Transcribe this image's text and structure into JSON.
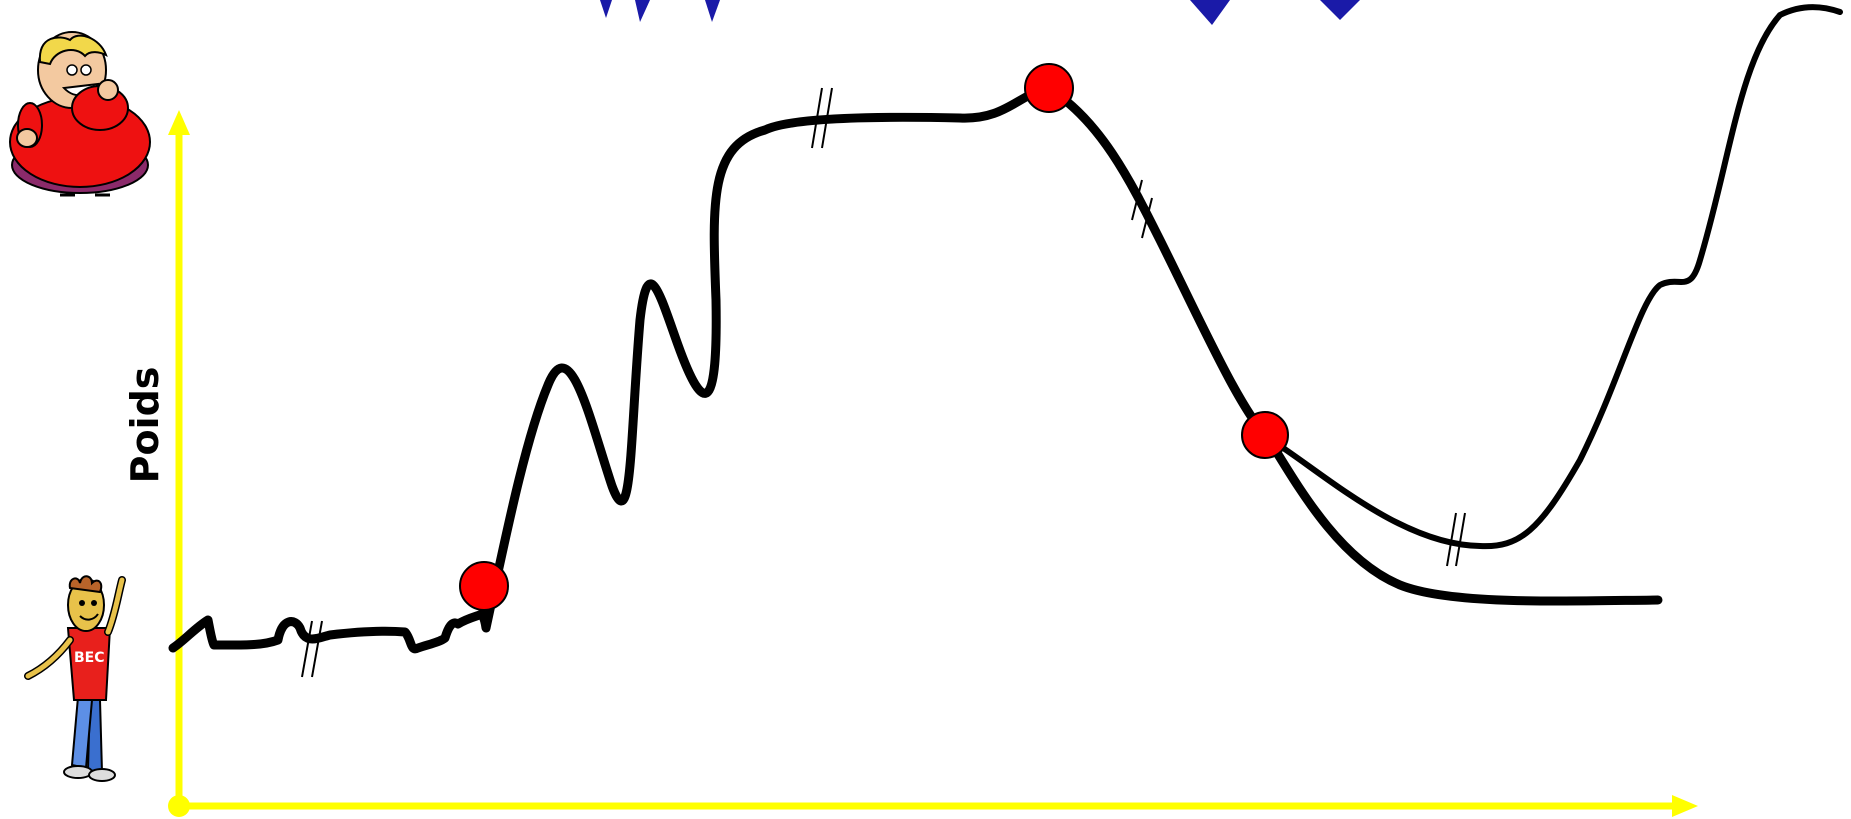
{
  "diagram": {
    "y_axis_label": "Poids"
  },
  "colors": {
    "axis": "#ffff00",
    "curve": "#000000",
    "marker": "#ff0000",
    "title_partial": "#1a1aa8"
  },
  "icons": {
    "heavy_person": "overweight-cartoon-person-icon",
    "thin_person": "thin-cartoon-person-icon"
  }
}
